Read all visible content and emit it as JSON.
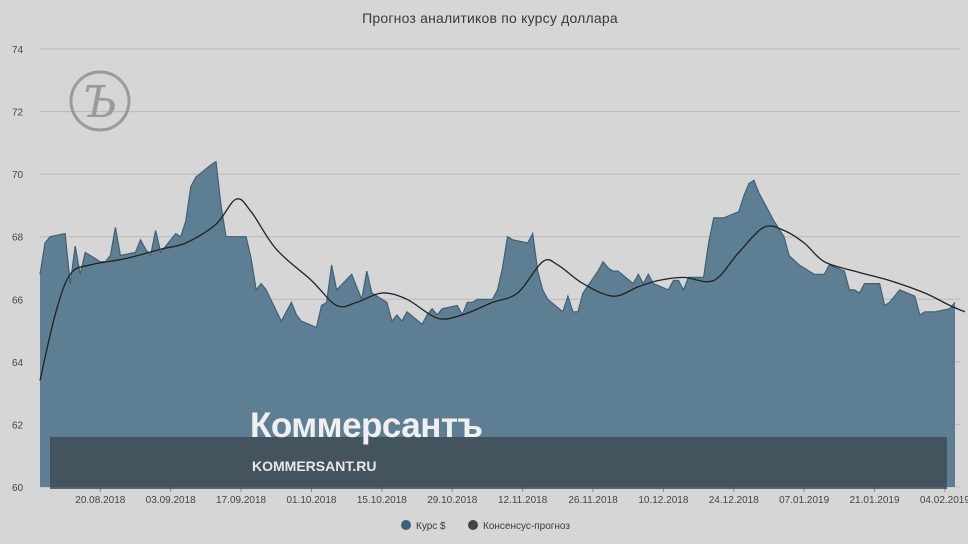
{
  "chart_data": {
    "type": "area",
    "title": "Прогноз аналитиков по курсу доллара",
    "ylim": [
      60,
      74
    ],
    "yticks": [
      60,
      62,
      64,
      66,
      68,
      70,
      72,
      74
    ],
    "xlim": [
      "2018-08-08",
      "2019-02-07"
    ],
    "xticks": [
      "20.08.2018",
      "03.09.2018",
      "17.09.2018",
      "01.10.2018",
      "15.10.2018",
      "29.10.2018",
      "12.11.2018",
      "26.11.2018",
      "10.12.2018",
      "24.12.2018",
      "07.01.2019",
      "21.01.2019",
      "04.02.2019"
    ],
    "grid": true,
    "legend_position": "bottom-center",
    "series": [
      {
        "name": "Курс $",
        "type": "area",
        "color": "#5e7e93",
        "points": [
          [
            "2018-08-08",
            66.8
          ],
          [
            "2018-08-09",
            67.8
          ],
          [
            "2018-08-10",
            68.0
          ],
          [
            "2018-08-13",
            68.1
          ],
          [
            "2018-08-14",
            66.5
          ],
          [
            "2018-08-15",
            67.7
          ],
          [
            "2018-08-16",
            66.8
          ],
          [
            "2018-08-17",
            67.5
          ],
          [
            "2018-08-20",
            67.2
          ],
          [
            "2018-08-21",
            67.2
          ],
          [
            "2018-08-22",
            67.4
          ],
          [
            "2018-08-23",
            68.3
          ],
          [
            "2018-08-24",
            67.4
          ],
          [
            "2018-08-27",
            67.5
          ],
          [
            "2018-08-28",
            67.9
          ],
          [
            "2018-08-29",
            67.6
          ],
          [
            "2018-08-30",
            67.4
          ],
          [
            "2018-08-31",
            68.2
          ],
          [
            "2018-09-01",
            67.5
          ],
          [
            "2018-09-04",
            68.1
          ],
          [
            "2018-09-05",
            68.0
          ],
          [
            "2018-09-06",
            68.5
          ],
          [
            "2018-09-07",
            69.6
          ],
          [
            "2018-09-08",
            69.9
          ],
          [
            "2018-09-11",
            70.3
          ],
          [
            "2018-09-12",
            70.4
          ],
          [
            "2018-09-13",
            69.0
          ],
          [
            "2018-09-14",
            68.0
          ],
          [
            "2018-09-15",
            68.0
          ],
          [
            "2018-09-18",
            68.0
          ],
          [
            "2018-09-19",
            67.3
          ],
          [
            "2018-09-20",
            66.3
          ],
          [
            "2018-09-21",
            66.5
          ],
          [
            "2018-09-22",
            66.3
          ],
          [
            "2018-09-25",
            65.3
          ],
          [
            "2018-09-26",
            65.6
          ],
          [
            "2018-09-27",
            65.9
          ],
          [
            "2018-09-28",
            65.5
          ],
          [
            "2018-09-29",
            65.3
          ],
          [
            "2018-10-02",
            65.1
          ],
          [
            "2018-10-03",
            65.8
          ],
          [
            "2018-10-04",
            65.9
          ],
          [
            "2018-10-05",
            67.1
          ],
          [
            "2018-10-06",
            66.3
          ],
          [
            "2018-10-09",
            66.8
          ],
          [
            "2018-10-10",
            66.4
          ],
          [
            "2018-10-11",
            66.0
          ],
          [
            "2018-10-12",
            66.9
          ],
          [
            "2018-10-13",
            66.2
          ],
          [
            "2018-10-16",
            65.9
          ],
          [
            "2018-10-17",
            65.3
          ],
          [
            "2018-10-18",
            65.5
          ],
          [
            "2018-10-19",
            65.3
          ],
          [
            "2018-10-20",
            65.6
          ],
          [
            "2018-10-23",
            65.2
          ],
          [
            "2018-10-24",
            65.5
          ],
          [
            "2018-10-25",
            65.7
          ],
          [
            "2018-10-26",
            65.5
          ],
          [
            "2018-10-27",
            65.7
          ],
          [
            "2018-10-30",
            65.8
          ],
          [
            "2018-10-31",
            65.5
          ],
          [
            "2018-11-01",
            65.9
          ],
          [
            "2018-11-02",
            65.9
          ],
          [
            "2018-11-03",
            66.0
          ],
          [
            "2018-11-06",
            66.0
          ],
          [
            "2018-11-07",
            66.3
          ],
          [
            "2018-11-08",
            67.0
          ],
          [
            "2018-11-09",
            68.0
          ],
          [
            "2018-11-10",
            67.9
          ],
          [
            "2018-11-13",
            67.8
          ],
          [
            "2018-11-14",
            68.1
          ],
          [
            "2018-11-15",
            66.9
          ],
          [
            "2018-11-16",
            66.3
          ],
          [
            "2018-11-17",
            66.0
          ],
          [
            "2018-11-20",
            65.6
          ],
          [
            "2018-11-21",
            66.1
          ],
          [
            "2018-11-22",
            65.6
          ],
          [
            "2018-11-23",
            65.6
          ],
          [
            "2018-11-24",
            66.2
          ],
          [
            "2018-11-27",
            66.9
          ],
          [
            "2018-11-28",
            67.2
          ],
          [
            "2018-11-29",
            67.0
          ],
          [
            "2018-11-30",
            66.9
          ],
          [
            "2018-12-01",
            66.9
          ],
          [
            "2018-12-04",
            66.5
          ],
          [
            "2018-12-05",
            66.8
          ],
          [
            "2018-12-06",
            66.5
          ],
          [
            "2018-12-07",
            66.8
          ],
          [
            "2018-12-08",
            66.5
          ],
          [
            "2018-12-11",
            66.3
          ],
          [
            "2018-12-12",
            66.6
          ],
          [
            "2018-12-13",
            66.6
          ],
          [
            "2018-12-14",
            66.3
          ],
          [
            "2018-12-15",
            66.7
          ],
          [
            "2018-12-18",
            66.7
          ],
          [
            "2018-12-19",
            67.8
          ],
          [
            "2018-12-20",
            68.6
          ],
          [
            "2018-12-21",
            68.6
          ],
          [
            "2018-12-22",
            68.6
          ],
          [
            "2018-12-25",
            68.8
          ],
          [
            "2018-12-26",
            69.3
          ],
          [
            "2018-12-27",
            69.7
          ],
          [
            "2018-12-28",
            69.8
          ],
          [
            "2018-12-29",
            69.4
          ],
          [
            "2019-01-01",
            68.5
          ],
          [
            "2019-01-03",
            68.0
          ],
          [
            "2019-01-04",
            67.4
          ],
          [
            "2019-01-06",
            67.1
          ],
          [
            "2019-01-09",
            66.8
          ],
          [
            "2019-01-10",
            66.8
          ],
          [
            "2019-01-11",
            66.8
          ],
          [
            "2019-01-12",
            67.1
          ],
          [
            "2019-01-15",
            66.9
          ],
          [
            "2019-01-16",
            66.3
          ],
          [
            "2019-01-17",
            66.3
          ],
          [
            "2019-01-18",
            66.2
          ],
          [
            "2019-01-19",
            66.5
          ],
          [
            "2019-01-22",
            66.5
          ],
          [
            "2019-01-23",
            65.8
          ],
          [
            "2019-01-24",
            65.9
          ],
          [
            "2019-01-25",
            66.1
          ],
          [
            "2019-01-26",
            66.3
          ],
          [
            "2019-01-29",
            66.1
          ],
          [
            "2019-01-30",
            65.5
          ],
          [
            "2019-01-31",
            65.6
          ],
          [
            "2019-02-02",
            65.6
          ],
          [
            "2019-02-05",
            65.7
          ],
          [
            "2019-02-06",
            65.9
          ]
        ]
      },
      {
        "name": "Консенсус-прогноз",
        "type": "line",
        "color": "#222222",
        "points": [
          [
            "2018-08-08",
            63.4
          ],
          [
            "2018-08-11",
            65.5
          ],
          [
            "2018-08-14",
            66.8
          ],
          [
            "2018-08-18",
            67.1
          ],
          [
            "2018-08-25",
            67.3
          ],
          [
            "2018-09-01",
            67.6
          ],
          [
            "2018-09-06",
            67.8
          ],
          [
            "2018-09-12",
            68.4
          ],
          [
            "2018-09-16",
            69.2
          ],
          [
            "2018-09-19",
            68.8
          ],
          [
            "2018-09-24",
            67.6
          ],
          [
            "2018-10-01",
            66.6
          ],
          [
            "2018-10-06",
            65.8
          ],
          [
            "2018-10-10",
            65.9
          ],
          [
            "2018-10-15",
            66.2
          ],
          [
            "2018-10-20",
            66.0
          ],
          [
            "2018-10-26",
            65.4
          ],
          [
            "2018-10-31",
            65.5
          ],
          [
            "2018-11-06",
            65.9
          ],
          [
            "2018-11-11",
            66.2
          ],
          [
            "2018-11-16",
            67.2
          ],
          [
            "2018-11-19",
            67.1
          ],
          [
            "2018-11-24",
            66.5
          ],
          [
            "2018-11-30",
            66.1
          ],
          [
            "2018-12-05",
            66.4
          ],
          [
            "2018-12-09",
            66.6
          ],
          [
            "2018-12-14",
            66.7
          ],
          [
            "2018-12-20",
            66.6
          ],
          [
            "2018-12-25",
            67.5
          ],
          [
            "2018-12-30",
            68.3
          ],
          [
            "2019-01-03",
            68.2
          ],
          [
            "2019-01-07",
            67.8
          ],
          [
            "2019-01-11",
            67.2
          ],
          [
            "2019-01-17",
            66.9
          ],
          [
            "2019-01-24",
            66.6
          ],
          [
            "2019-01-31",
            66.2
          ],
          [
            "2019-02-05",
            65.8
          ],
          [
            "2019-02-08",
            65.6
          ]
        ]
      }
    ]
  },
  "watermark": {
    "brand": "Коммерсантъ",
    "site": "KOMMERSANT.RU",
    "logo_letter": "Ъ"
  },
  "colors": {
    "background": "#d6d6d6",
    "area_fill": "#5e7e93",
    "area_line": "#3f6075",
    "consensus_line": "#222222",
    "watermark_band": "#3d4a53"
  }
}
